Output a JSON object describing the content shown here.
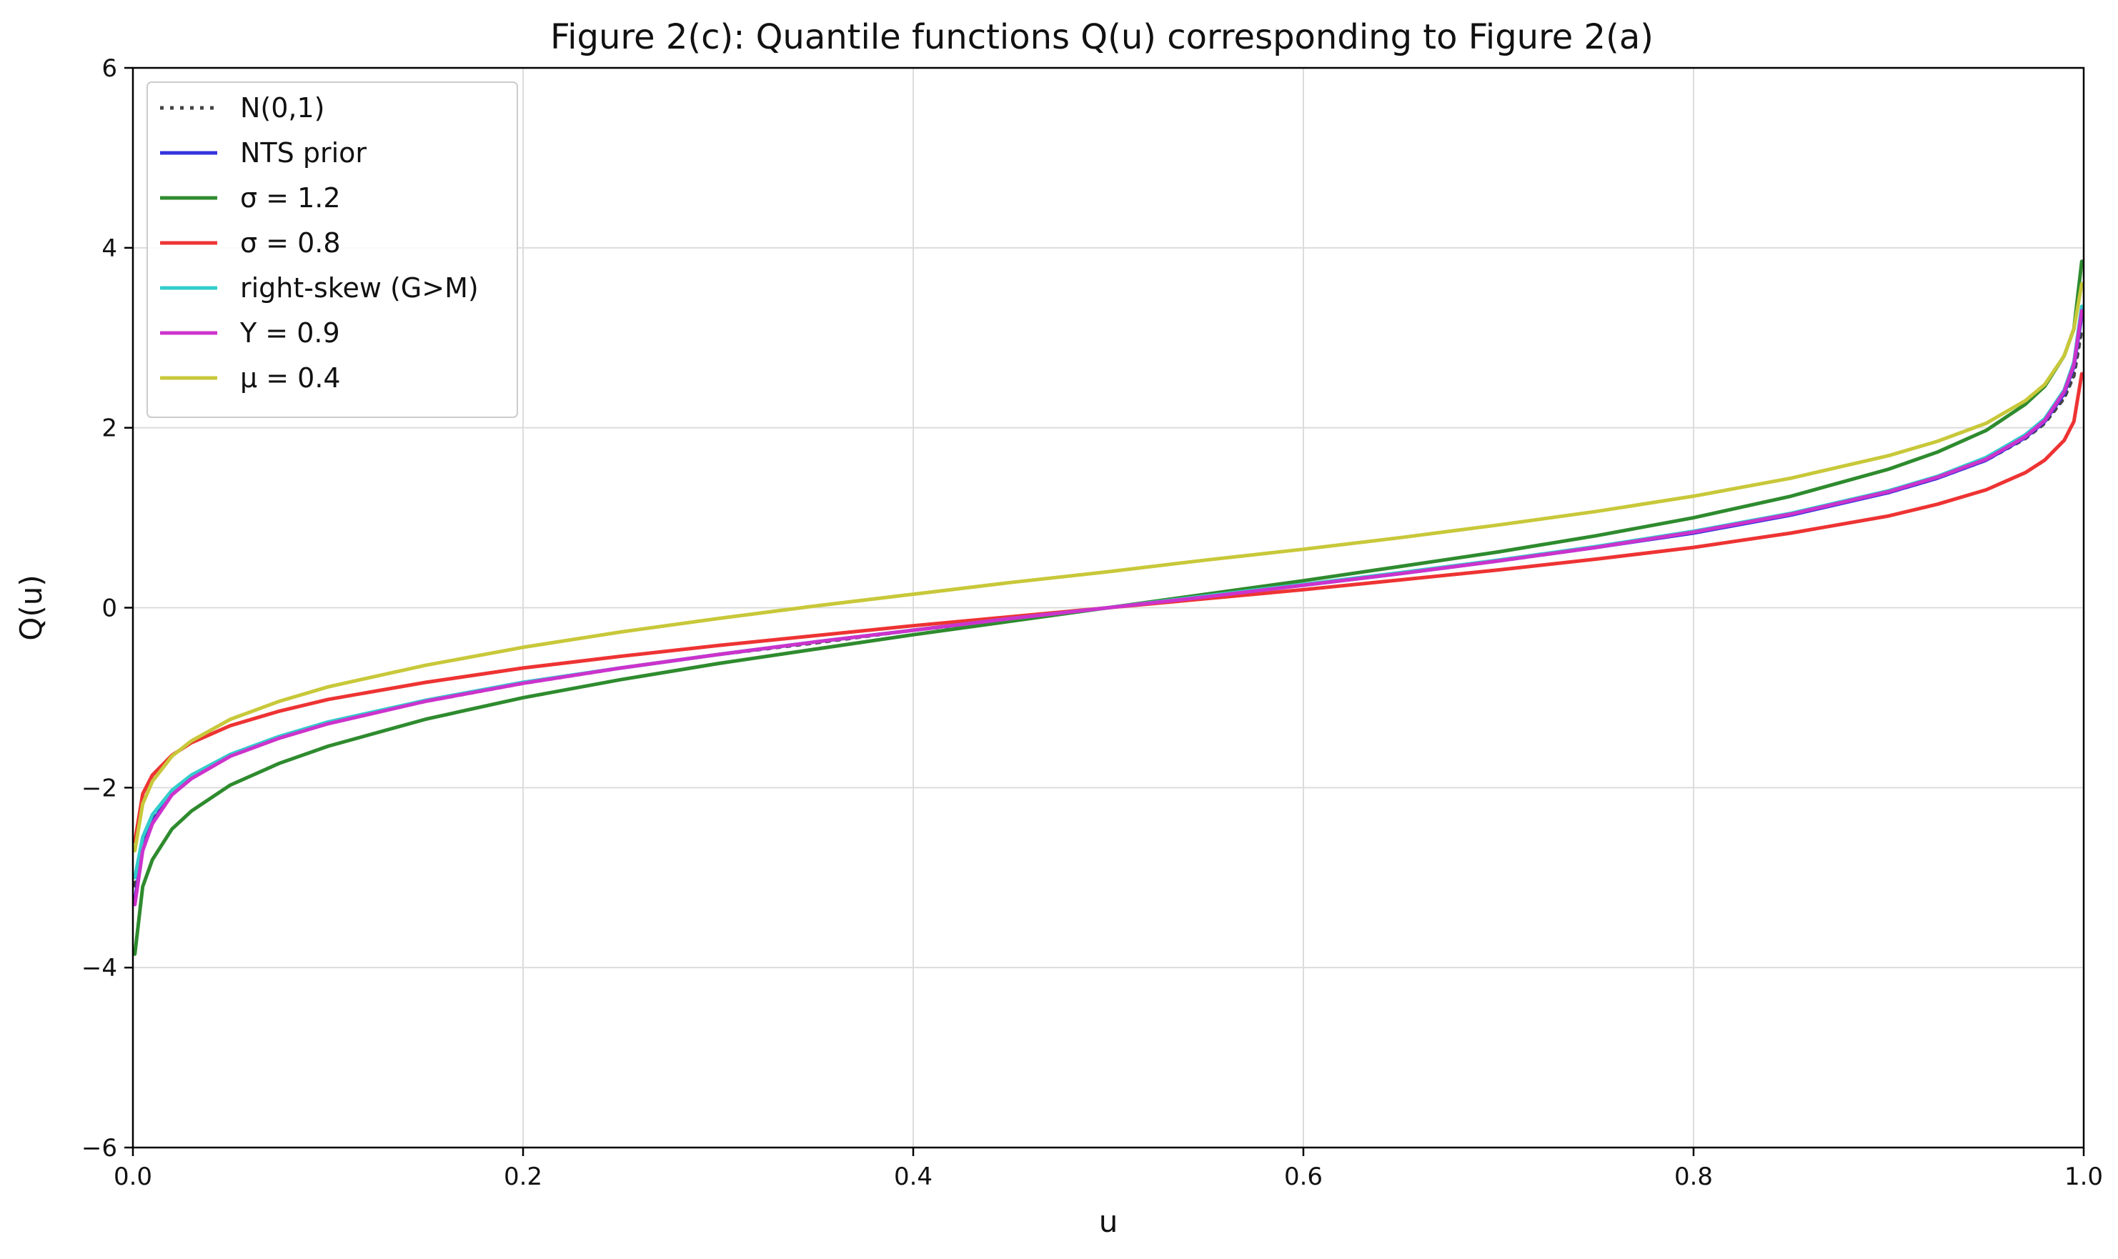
{
  "chart_data": {
    "type": "line",
    "title": "Figure 2(c): Quantile functions Q(u) corresponding to Figure 2(a)",
    "xlabel": "u",
    "ylabel": "Q(u)",
    "xlim": [
      0.0,
      1.0
    ],
    "ylim": [
      -6,
      6
    ],
    "xticks": [
      0.0,
      0.2,
      0.4,
      0.6,
      0.8,
      1.0
    ],
    "xtick_labels": [
      "0.0",
      "0.2",
      "0.4",
      "0.6",
      "0.8",
      "1.0"
    ],
    "yticks": [
      -6,
      -4,
      -2,
      0,
      2,
      4,
      6
    ],
    "ytick_labels": [
      "−6",
      "−4",
      "−2",
      "0",
      "2",
      "4",
      "6"
    ],
    "grid": true,
    "legend_position": "top-left",
    "x": [
      0.001,
      0.005,
      0.01,
      0.02,
      0.03,
      0.05,
      0.075,
      0.1,
      0.15,
      0.2,
      0.25,
      0.3,
      0.35,
      0.4,
      0.45,
      0.5,
      0.55,
      0.6,
      0.65,
      0.7,
      0.75,
      0.8,
      0.85,
      0.9,
      0.925,
      0.95,
      0.97,
      0.98,
      0.99,
      0.995,
      0.999
    ],
    "series": [
      {
        "name": "N(0,1)",
        "color": "#444444",
        "dash": "dotted",
        "values": [
          -3.09,
          -2.58,
          -2.33,
          -2.05,
          -1.88,
          -1.64,
          -1.44,
          -1.28,
          -1.04,
          -0.84,
          -0.67,
          -0.52,
          -0.39,
          -0.25,
          -0.13,
          0.0,
          0.13,
          0.25,
          0.39,
          0.52,
          0.67,
          0.84,
          1.04,
          1.28,
          1.44,
          1.64,
          1.88,
          2.05,
          2.33,
          2.58,
          3.09
        ]
      },
      {
        "name": "NTS prior",
        "color": "#3333dd",
        "dash": "solid",
        "values": [
          -3.25,
          -2.68,
          -2.38,
          -2.07,
          -1.89,
          -1.64,
          -1.44,
          -1.28,
          -1.03,
          -0.83,
          -0.67,
          -0.52,
          -0.38,
          -0.25,
          -0.12,
          0.0,
          0.12,
          0.25,
          0.38,
          0.52,
          0.67,
          0.83,
          1.03,
          1.28,
          1.44,
          1.64,
          1.89,
          2.07,
          2.38,
          2.68,
          3.25
        ]
      },
      {
        "name": "σ = 1.2",
        "color": "#2e8b2e",
        "dash": "solid",
        "values": [
          -3.85,
          -3.1,
          -2.8,
          -2.46,
          -2.26,
          -1.97,
          -1.73,
          -1.54,
          -1.24,
          -1.0,
          -0.8,
          -0.62,
          -0.46,
          -0.3,
          -0.15,
          0.0,
          0.15,
          0.3,
          0.46,
          0.62,
          0.8,
          1.0,
          1.24,
          1.54,
          1.73,
          1.97,
          2.26,
          2.46,
          2.8,
          3.1,
          3.85
        ]
      },
      {
        "name": "σ = 0.8",
        "color": "#ee3333",
        "dash": "solid",
        "values": [
          -2.6,
          -2.07,
          -1.86,
          -1.64,
          -1.5,
          -1.31,
          -1.15,
          -1.02,
          -0.83,
          -0.67,
          -0.54,
          -0.42,
          -0.31,
          -0.2,
          -0.1,
          0.0,
          0.1,
          0.2,
          0.31,
          0.42,
          0.54,
          0.67,
          0.83,
          1.02,
          1.15,
          1.31,
          1.5,
          1.64,
          1.86,
          2.07,
          2.6
        ]
      },
      {
        "name": "right-skew (G>M)",
        "color": "#33cccc",
        "dash": "solid",
        "values": [
          -3.0,
          -2.55,
          -2.3,
          -2.03,
          -1.86,
          -1.63,
          -1.43,
          -1.27,
          -1.03,
          -0.83,
          -0.67,
          -0.52,
          -0.38,
          -0.25,
          -0.12,
          0.0,
          0.13,
          0.26,
          0.39,
          0.53,
          0.68,
          0.85,
          1.05,
          1.3,
          1.46,
          1.67,
          1.92,
          2.1,
          2.42,
          2.73,
          3.35
        ]
      },
      {
        "name": "Y = 0.9",
        "color": "#cc33cc",
        "dash": "solid",
        "values": [
          -3.3,
          -2.7,
          -2.4,
          -2.08,
          -1.9,
          -1.65,
          -1.45,
          -1.29,
          -1.04,
          -0.84,
          -0.67,
          -0.52,
          -0.38,
          -0.25,
          -0.12,
          0.0,
          0.12,
          0.25,
          0.38,
          0.52,
          0.67,
          0.84,
          1.04,
          1.29,
          1.45,
          1.65,
          1.9,
          2.08,
          2.4,
          2.7,
          3.3
        ]
      },
      {
        "name": "μ = 0.4",
        "color": "#c8c83a",
        "dash": "solid",
        "values": [
          -2.7,
          -2.18,
          -1.93,
          -1.65,
          -1.48,
          -1.24,
          -1.04,
          -0.88,
          -0.64,
          -0.44,
          -0.27,
          -0.12,
          0.02,
          0.15,
          0.28,
          0.4,
          0.53,
          0.65,
          0.78,
          0.92,
          1.07,
          1.24,
          1.44,
          1.69,
          1.85,
          2.05,
          2.3,
          2.48,
          2.8,
          3.1,
          3.6
        ]
      }
    ]
  }
}
